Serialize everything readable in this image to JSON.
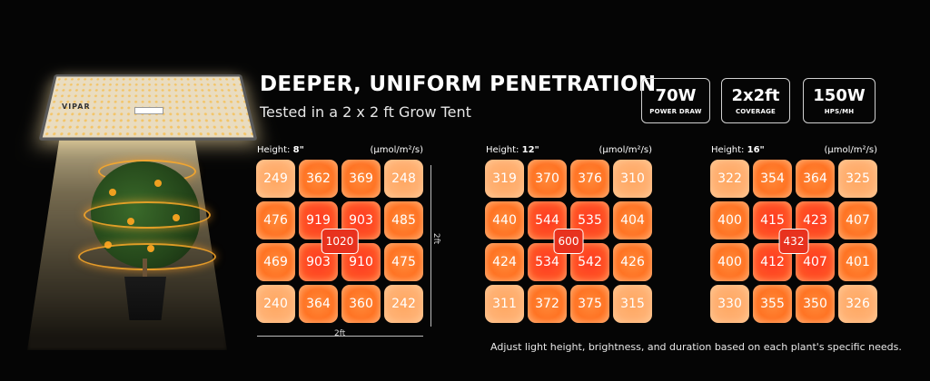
{
  "lamp": {
    "brand": "VIPAR"
  },
  "header": {
    "title": "DEEPER, UNIFORM PENETRATION",
    "subtitle": "Tested in a 2 x 2 ft Grow Tent"
  },
  "badges": [
    {
      "value": "70W",
      "label": "POWER DRAW"
    },
    {
      "value": "2x2ft",
      "label": "COVERAGE"
    },
    {
      "value": "150W",
      "label": "HPS/MH"
    }
  ],
  "unit": "(μmol/m²/s)",
  "height_prefix": "Height:",
  "grids": [
    {
      "height": "8\"",
      "center": "1020",
      "rows": [
        [
          "249",
          "362",
          "369",
          "248"
        ],
        [
          "476",
          "919",
          "903",
          "485"
        ],
        [
          "469",
          "903",
          "910",
          "475"
        ],
        [
          "240",
          "364",
          "360",
          "242"
        ]
      ]
    },
    {
      "height": "12\"",
      "center": "600",
      "rows": [
        [
          "319",
          "370",
          "376",
          "310"
        ],
        [
          "440",
          "544",
          "535",
          "404"
        ],
        [
          "424",
          "534",
          "542",
          "426"
        ],
        [
          "311",
          "372",
          "375",
          "315"
        ]
      ]
    },
    {
      "height": "16\"",
      "center": "432",
      "rows": [
        [
          "322",
          "354",
          "364",
          "325"
        ],
        [
          "400",
          "415",
          "423",
          "407"
        ],
        [
          "400",
          "412",
          "407",
          "401"
        ],
        [
          "330",
          "355",
          "350",
          "326"
        ]
      ]
    }
  ],
  "dimensions": {
    "width_label": "2ft",
    "depth_label": "2ft"
  },
  "footer_note": "Adjust light height, brightness, and duration based on each plant's specific needs.",
  "colors": {
    "background": "#050505",
    "cell": "#ff7424",
    "cell_hot": "#ff3a22",
    "center_badge": "#e8321e"
  }
}
